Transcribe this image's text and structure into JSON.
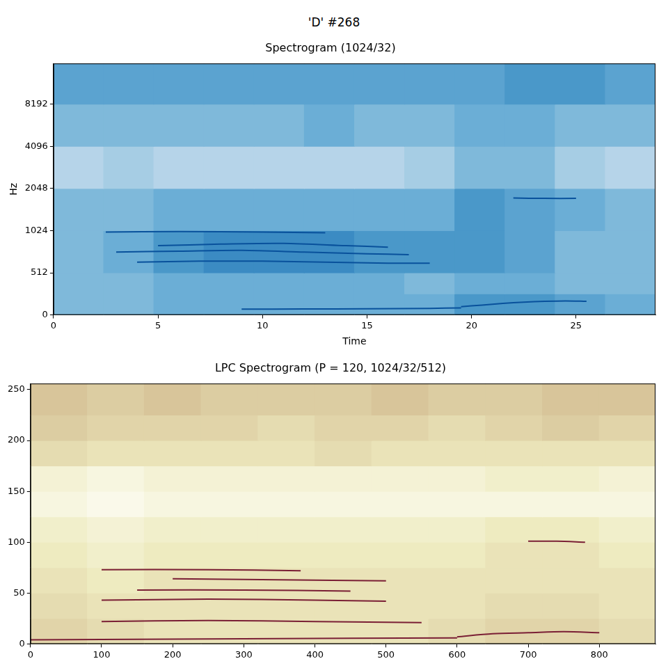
{
  "title": "'D' #268",
  "chart_data": [
    {
      "type": "heatmap",
      "title": "Spectrogram (1024/32)",
      "x_label": "Time",
      "y_label": "Hz",
      "xlim": [
        0,
        28.8
      ],
      "xticks": [
        0,
        5,
        10,
        15,
        20,
        25
      ],
      "ylim": [
        0,
        16000
      ],
      "yticks": [
        0,
        512,
        1024,
        2048,
        4096,
        8192
      ],
      "log": "y",
      "grid": false,
      "color": "Blues",
      "color_range": [
        0,
        1
      ],
      "x_edges": [
        0,
        2.4,
        4.8,
        7.2,
        9.6,
        12,
        14.4,
        16.8,
        19.2,
        21.6,
        24,
        26.4,
        28.8
      ],
      "y_edges": [
        0,
        256,
        512,
        1024,
        2048,
        4096,
        8192,
        16000
      ],
      "cells": [
        [
          0.45,
          0.45,
          0.5,
          0.5,
          0.5,
          0.5,
          0.5,
          0.5,
          0.6,
          0.6,
          0.55,
          0.5
        ],
        [
          0.45,
          0.45,
          0.5,
          0.5,
          0.5,
          0.5,
          0.5,
          0.45,
          0.5,
          0.5,
          0.45,
          0.45
        ],
        [
          0.45,
          0.5,
          0.6,
          0.65,
          0.65,
          0.65,
          0.6,
          0.6,
          0.6,
          0.55,
          0.45,
          0.45
        ],
        [
          0.45,
          0.45,
          0.5,
          0.5,
          0.5,
          0.5,
          0.5,
          0.5,
          0.6,
          0.55,
          0.5,
          0.45
        ],
        [
          0.3,
          0.35,
          0.3,
          0.3,
          0.3,
          0.3,
          0.3,
          0.35,
          0.45,
          0.45,
          0.35,
          0.3
        ],
        [
          0.45,
          0.45,
          0.45,
          0.45,
          0.45,
          0.5,
          0.45,
          0.45,
          0.5,
          0.5,
          0.45,
          0.45
        ],
        [
          0.55,
          0.55,
          0.55,
          0.55,
          0.55,
          0.55,
          0.55,
          0.55,
          0.55,
          0.6,
          0.6,
          0.55
        ]
      ],
      "series": [
        {
          "color": "#08519c",
          "line_style": "solid",
          "x": [
            9,
            12,
            15,
            18,
            19.5
          ],
          "values": [
            70,
            72,
            75,
            80,
            85
          ]
        },
        {
          "color": "#08519c",
          "line_style": "solid",
          "x": [
            19.5,
            20.5,
            21.5,
            22.5,
            23.5,
            24.5,
            25.5
          ],
          "values": [
            100,
            120,
            140,
            155,
            165,
            170,
            165
          ]
        },
        {
          "color": "#08519c",
          "line_style": "solid",
          "x": [
            4,
            7,
            10,
            13,
            16,
            18
          ],
          "values": [
            610,
            620,
            620,
            610,
            600,
            600
          ]
        },
        {
          "color": "#08519c",
          "line_style": "solid",
          "x": [
            3,
            6,
            9,
            12,
            15,
            17
          ],
          "values": [
            720,
            730,
            740,
            720,
            700,
            690
          ]
        },
        {
          "color": "#08519c",
          "line_style": "solid",
          "x": [
            5,
            8,
            11,
            14,
            16
          ],
          "values": [
            800,
            820,
            830,
            800,
            780
          ]
        },
        {
          "color": "#08519c",
          "line_style": "solid",
          "x": [
            2.5,
            6,
            10,
            13
          ],
          "values": [
            1000,
            1010,
            1000,
            990
          ]
        },
        {
          "color": "#08519c",
          "line_style": "solid",
          "x": [
            22,
            23.5,
            25
          ],
          "values": [
            1750,
            1740,
            1740
          ]
        }
      ]
    },
    {
      "type": "heatmap",
      "title": "LPC Spectrogram (P = 120, 1024/32/512)",
      "xlim": [
        0,
        879
      ],
      "xticks": [
        0,
        100,
        200,
        300,
        400,
        500,
        600,
        700,
        800
      ],
      "ylim": [
        0,
        256
      ],
      "yticks": [
        0,
        50,
        100,
        150,
        200,
        250
      ],
      "grid": false,
      "color": "pink_r",
      "color_range": [
        0,
        1
      ],
      "x_edges": [
        0,
        80,
        160,
        240,
        320,
        400,
        480,
        560,
        640,
        720,
        800,
        879
      ],
      "y_edges": [
        0,
        25,
        50,
        75,
        100,
        125,
        150,
        175,
        200,
        225,
        256
      ],
      "cells": [
        [
          0.4,
          0.35,
          0.3,
          0.3,
          0.3,
          0.3,
          0.3,
          0.35,
          0.4,
          0.4,
          0.35
        ],
        [
          0.35,
          0.3,
          0.3,
          0.3,
          0.3,
          0.3,
          0.3,
          0.3,
          0.35,
          0.35,
          0.3
        ],
        [
          0.3,
          0.25,
          0.3,
          0.3,
          0.3,
          0.3,
          0.3,
          0.3,
          0.3,
          0.3,
          0.3
        ],
        [
          0.25,
          0.2,
          0.25,
          0.25,
          0.25,
          0.25,
          0.25,
          0.25,
          0.3,
          0.3,
          0.25
        ],
        [
          0.2,
          0.15,
          0.2,
          0.2,
          0.2,
          0.2,
          0.2,
          0.2,
          0.25,
          0.25,
          0.2
        ],
        [
          0.1,
          0.05,
          0.1,
          0.1,
          0.1,
          0.1,
          0.1,
          0.1,
          0.1,
          0.1,
          0.1
        ],
        [
          0.15,
          0.1,
          0.15,
          0.15,
          0.15,
          0.15,
          0.15,
          0.15,
          0.2,
          0.2,
          0.15
        ],
        [
          0.35,
          0.3,
          0.3,
          0.3,
          0.3,
          0.35,
          0.3,
          0.3,
          0.3,
          0.3,
          0.3
        ],
        [
          0.45,
          0.4,
          0.4,
          0.4,
          0.35,
          0.4,
          0.4,
          0.35,
          0.4,
          0.45,
          0.4
        ],
        [
          0.5,
          0.45,
          0.5,
          0.45,
          0.45,
          0.45,
          0.5,
          0.45,
          0.45,
          0.5,
          0.5
        ]
      ],
      "series": [
        {
          "color": "#7a1f35",
          "line_style": "solid",
          "x": [
            0,
            300,
            600
          ],
          "values": [
            4,
            5,
            6
          ]
        },
        {
          "color": "#7a1f35",
          "line_style": "solid",
          "x": [
            600,
            650,
            700,
            750,
            800
          ],
          "values": [
            7,
            10,
            11,
            12,
            11
          ]
        },
        {
          "color": "#7a1f35",
          "line_style": "solid",
          "x": [
            100,
            250,
            400,
            550
          ],
          "values": [
            22,
            23,
            22,
            21
          ]
        },
        {
          "color": "#7a1f35",
          "line_style": "solid",
          "x": [
            100,
            250,
            400,
            500
          ],
          "values": [
            43,
            44,
            43,
            42
          ]
        },
        {
          "color": "#7a1f35",
          "line_style": "solid",
          "x": [
            150,
            300,
            450
          ],
          "values": [
            53,
            53,
            52
          ]
        },
        {
          "color": "#7a1f35",
          "line_style": "solid",
          "x": [
            200,
            350,
            500
          ],
          "values": [
            64,
            63,
            62
          ]
        },
        {
          "color": "#7a1f35",
          "line_style": "solid",
          "x": [
            100,
            250,
            380
          ],
          "values": [
            73,
            73,
            72
          ]
        },
        {
          "color": "#7a1f35",
          "line_style": "solid",
          "x": [
            700,
            740,
            780
          ],
          "values": [
            101,
            101,
            100
          ]
        }
      ]
    }
  ]
}
